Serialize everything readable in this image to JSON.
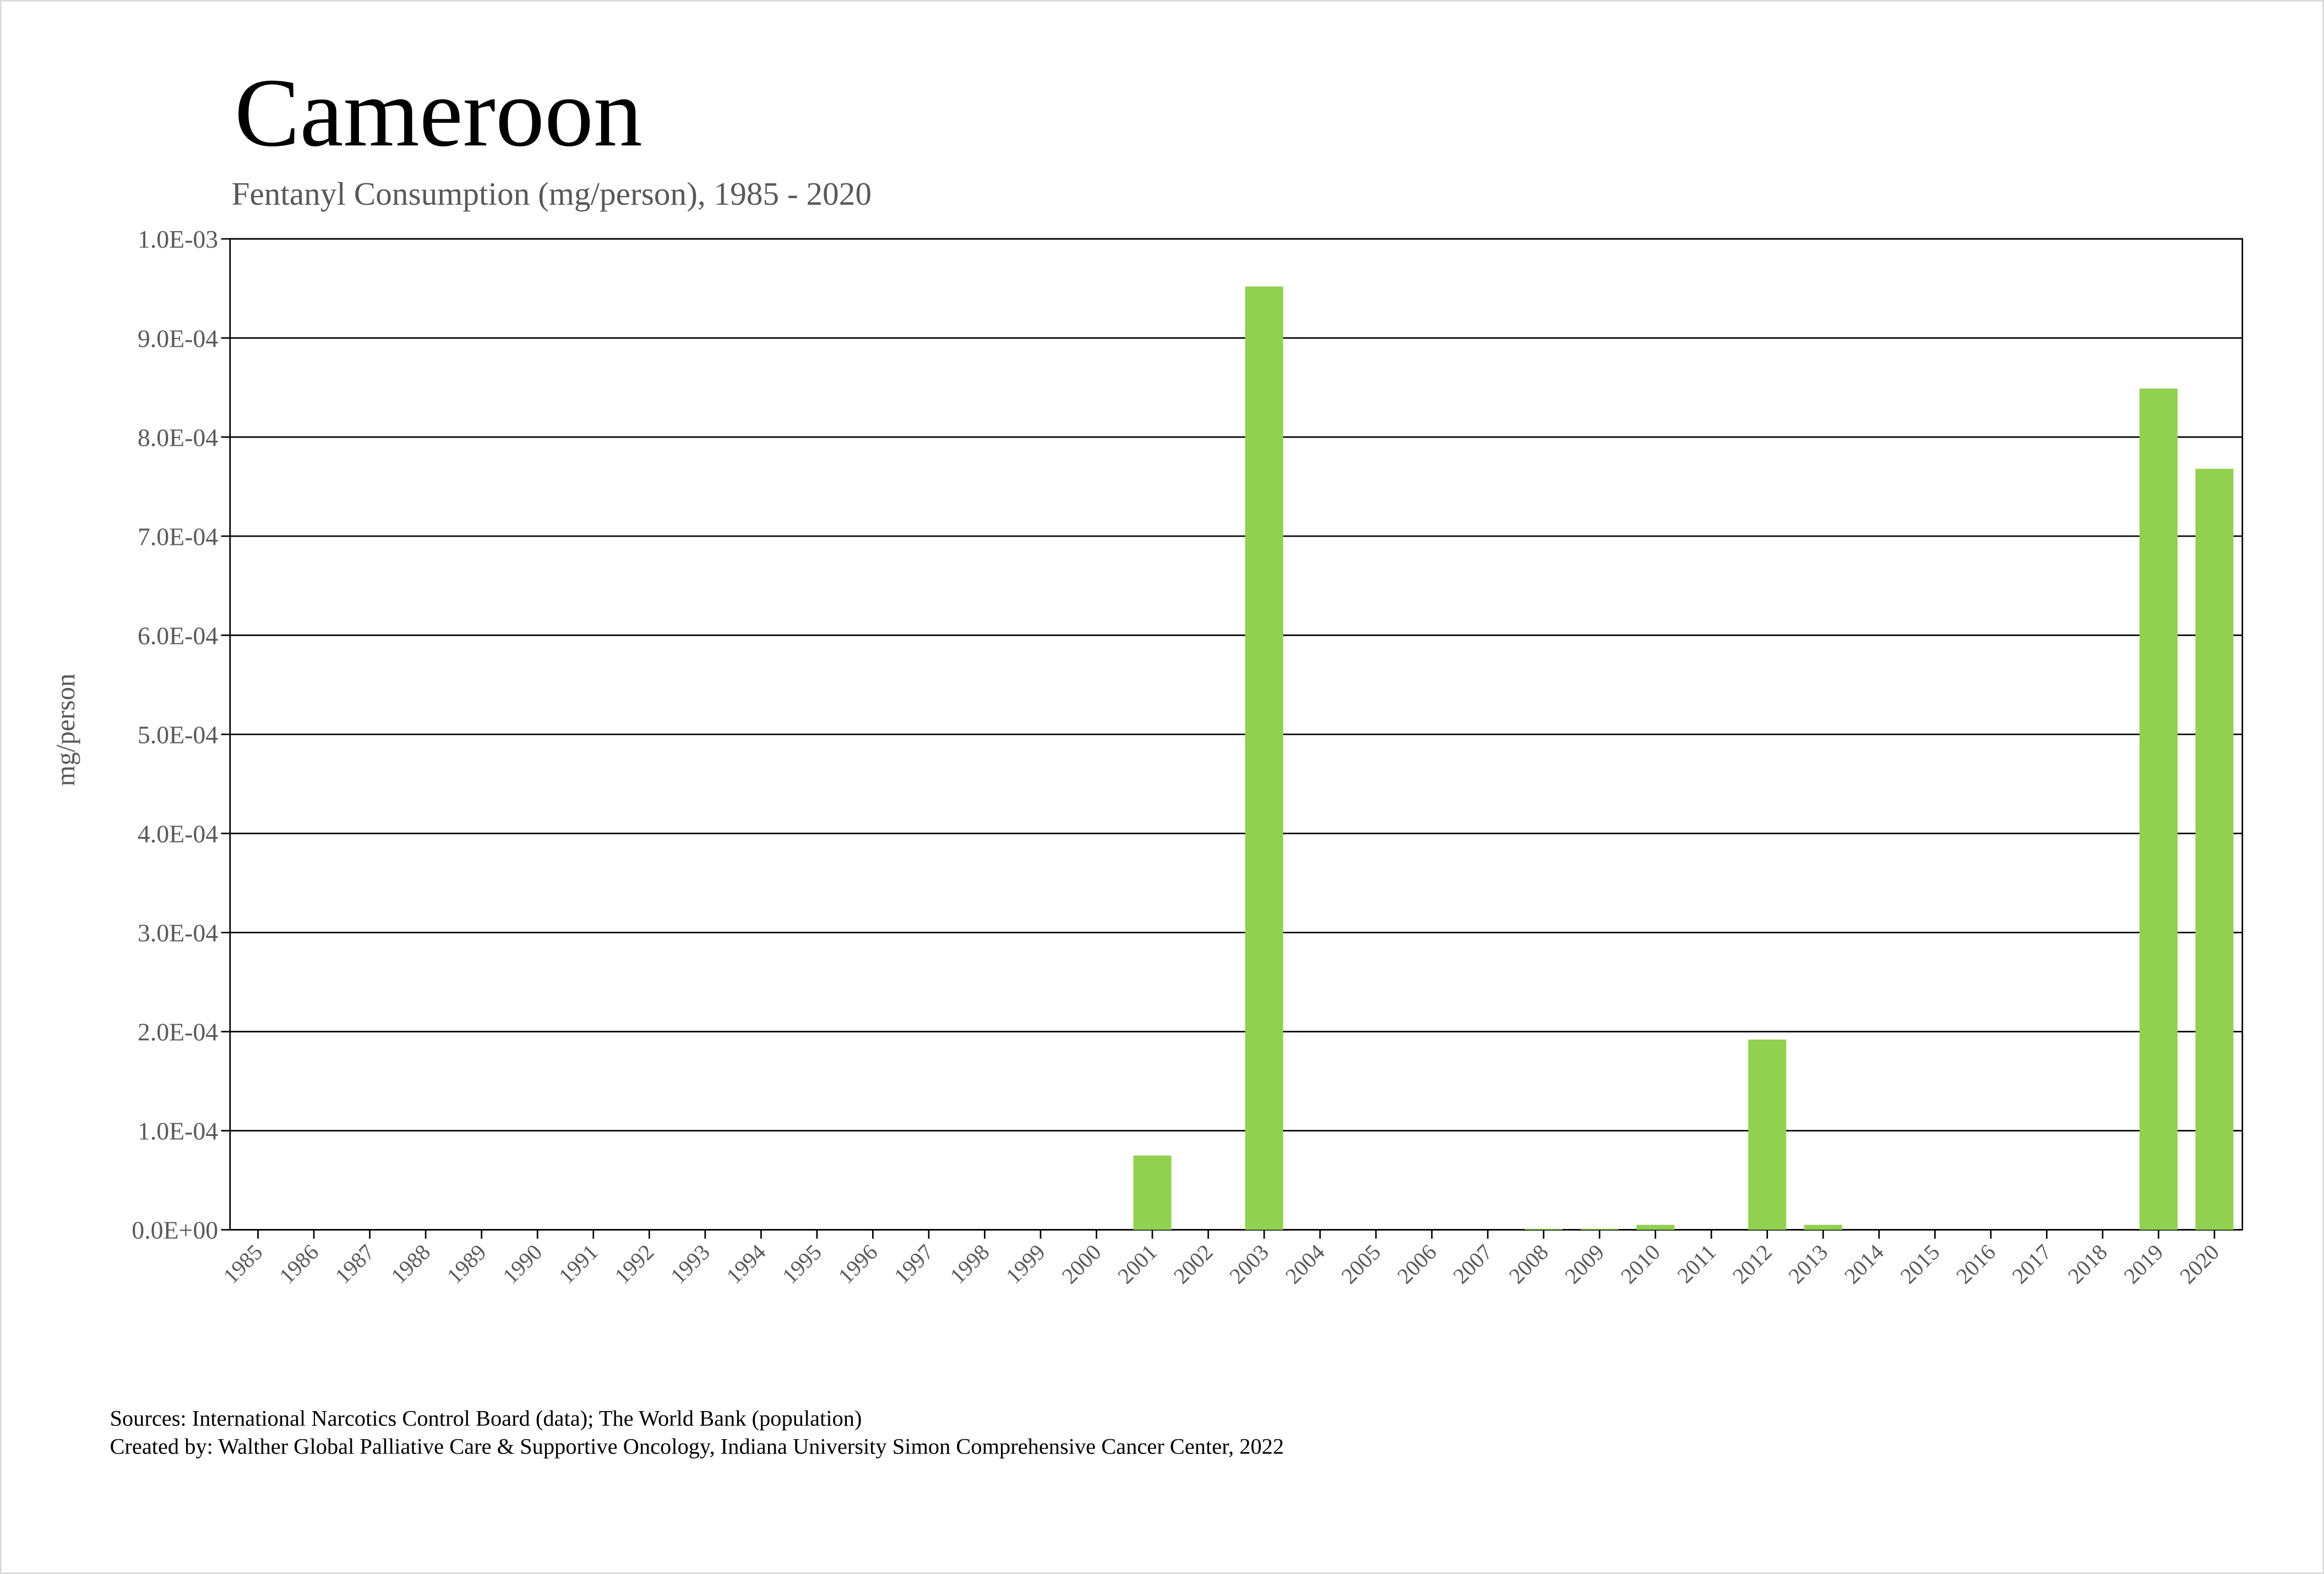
{
  "chart_data": {
    "type": "bar",
    "title": "Cameroon",
    "subtitle": "Fentanyl Consumption (mg/person), 1985 - 2020",
    "y_label": "mg/person",
    "source": "Sources: International Narcotics Control Board (data); The World Bank (population)",
    "credit": "Created by: Walther Global Palliative Care & Supportive Oncology, Indiana University Simon Comprehensive Cancer Center, 2022",
    "categories": [
      "1985",
      "1986",
      "1987",
      "1988",
      "1989",
      "1990",
      "1991",
      "1992",
      "1993",
      "1994",
      "1995",
      "1996",
      "1997",
      "1998",
      "1999",
      "2000",
      "2001",
      "2002",
      "2003",
      "2004",
      "2005",
      "2006",
      "2007",
      "2008",
      "2009",
      "2010",
      "2011",
      "2012",
      "2013",
      "2014",
      "2015",
      "2016",
      "2017",
      "2018",
      "2019",
      "2020"
    ],
    "values": [
      0,
      0,
      0,
      0,
      0,
      0,
      0,
      0,
      0,
      0,
      0,
      0,
      0,
      0,
      0,
      0,
      7.5e-05,
      0,
      0.000952,
      0,
      0,
      0,
      0,
      1e-06,
      1e-06,
      5e-06,
      0,
      0.000192,
      5e-06,
      0,
      0,
      0,
      0,
      0,
      0.000849,
      0.000768
    ],
    "color": "#92d050",
    "ylim": [
      0,
      0.001
    ],
    "yticks": [
      {
        "value": 0,
        "label": "0.0E+00"
      },
      {
        "value": 0.0001,
        "label": "1.0E-04"
      },
      {
        "value": 0.0002,
        "label": "2.0E-04"
      },
      {
        "value": 0.0003,
        "label": "3.0E-04"
      },
      {
        "value": 0.0004,
        "label": "4.0E-04"
      },
      {
        "value": 0.0005,
        "label": "5.0E-04"
      },
      {
        "value": 0.0006,
        "label": "6.0E-04"
      },
      {
        "value": 0.0007,
        "label": "7.0E-04"
      },
      {
        "value": 0.0008,
        "label": "8.0E-04"
      },
      {
        "value": 0.0009,
        "label": "9.0E-04"
      },
      {
        "value": 0.001,
        "label": "1.0E-03"
      }
    ],
    "grid": true
  }
}
